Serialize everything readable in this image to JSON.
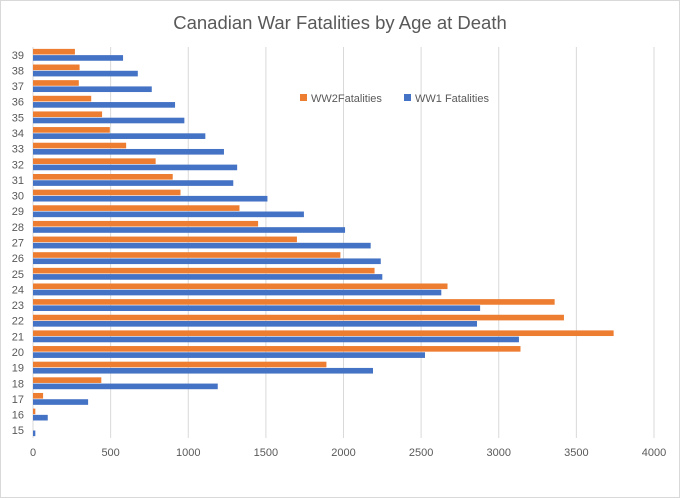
{
  "chart_data": {
    "type": "bar",
    "orientation": "horizontal",
    "title": "Canadian War Fatalities by Age at Death",
    "xlabel": "",
    "ylabel": "",
    "xlim": [
      0,
      4000
    ],
    "xticks": [
      0,
      500,
      1000,
      1500,
      2000,
      2500,
      3000,
      3500,
      4000
    ],
    "grid": true,
    "legend_position": "top-right",
    "categories": [
      "15",
      "16",
      "17",
      "18",
      "19",
      "20",
      "21",
      "22",
      "23",
      "24",
      "25",
      "26",
      "27",
      "28",
      "29",
      "30",
      "31",
      "32",
      "33",
      "34",
      "35",
      "36",
      "37",
      "38",
      "39"
    ],
    "series": [
      {
        "name": "WW2Fatalities",
        "color": "#ED7D31",
        "values": [
          0,
          15,
          65,
          440,
          1890,
          3140,
          3740,
          3420,
          3360,
          2670,
          2200,
          1980,
          1700,
          1450,
          1330,
          950,
          900,
          790,
          600,
          495,
          445,
          375,
          295,
          300,
          270
        ]
      },
      {
        "name": "WW1 Fatalities",
        "color": "#4472C4",
        "values": [
          15,
          95,
          355,
          1190,
          2190,
          2525,
          3130,
          2860,
          2880,
          2630,
          2250,
          2240,
          2175,
          2010,
          1745,
          1510,
          1290,
          1315,
          1230,
          1110,
          975,
          915,
          765,
          675,
          580
        ]
      }
    ]
  }
}
